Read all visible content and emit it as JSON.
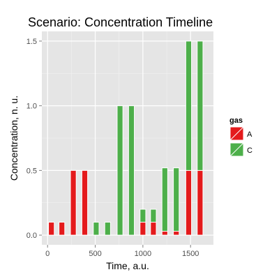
{
  "chart_data": {
    "type": "bar",
    "stacked": true,
    "title": "Scenario: Concentration Timeline",
    "xlabel": "Time, a.u.",
    "ylabel": "Concentration, n. u.",
    "xlim": [
      -60,
      1740
    ],
    "ylim": [
      -0.075,
      1.575
    ],
    "x_ticks": [
      0,
      500,
      1000,
      1500
    ],
    "y_ticks": [
      0.0,
      0.5,
      1.0,
      1.5
    ],
    "x_tick_labels": [
      "0",
      "500",
      "1000",
      "1500"
    ],
    "y_tick_labels": [
      "0.0",
      "0.5",
      "1.0",
      "1.5"
    ],
    "bar_width": 60,
    "x": [
      40,
      150,
      270,
      390,
      510,
      630,
      760,
      880,
      1000,
      1110,
      1230,
      1350,
      1480,
      1600
    ],
    "series": [
      {
        "name": "A",
        "color": "#e41a1c",
        "values": [
          0.1,
          0.1,
          0.5,
          0.5,
          0,
          0,
          0,
          0,
          0.1,
          0.1,
          0.03,
          0.03,
          0.5,
          0.5
        ]
      },
      {
        "name": "C",
        "color": "#4daf4a",
        "values": [
          0,
          0,
          0,
          0,
          0.1,
          0.1,
          1.0,
          1.0,
          0.1,
          0.1,
          0.49,
          0.49,
          1.0,
          1.0
        ]
      }
    ],
    "grid": true,
    "panel_background": "#e5e5e5",
    "legend": {
      "title": "gas",
      "position": "right"
    }
  }
}
